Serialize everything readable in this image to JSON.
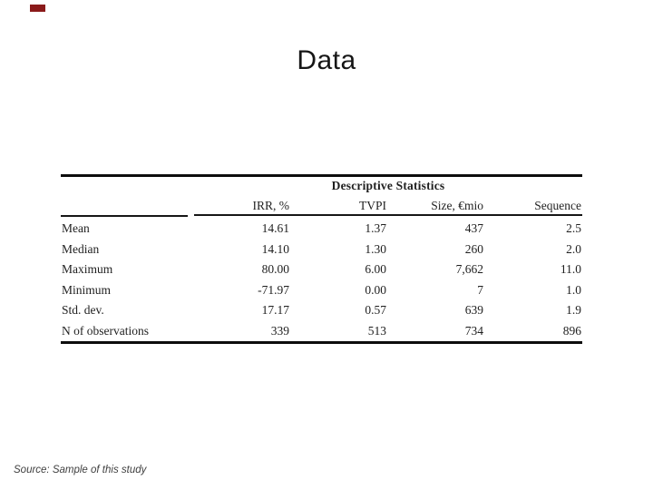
{
  "slide": {
    "title": "Data",
    "source_note": "Source: Sample of this study",
    "accent_color": "#8a1a1a",
    "background_color": "#ffffff",
    "text_color": "#1f1f1f"
  },
  "table": {
    "group_header": "Descriptive Statistics",
    "columns": [
      "IRR, %",
      "TVPI",
      "Size, €mio",
      "Sequence"
    ],
    "rows": [
      {
        "label": "Mean",
        "values": [
          "14.61",
          "1.37",
          "437",
          "2.5"
        ]
      },
      {
        "label": "Median",
        "values": [
          "14.10",
          "1.30",
          "260",
          "2.0"
        ]
      },
      {
        "label": "Maximum",
        "values": [
          "80.00",
          "6.00",
          "7,662",
          "11.0"
        ]
      },
      {
        "label": "Minimum",
        "values": [
          "-71.97",
          "0.00",
          "7",
          "1.0"
        ]
      },
      {
        "label": "Std. dev.",
        "values": [
          "17.17",
          "0.57",
          "639",
          "1.9"
        ]
      },
      {
        "label": "N of observations",
        "values": [
          "339",
          "513",
          "734",
          "896"
        ]
      }
    ]
  }
}
